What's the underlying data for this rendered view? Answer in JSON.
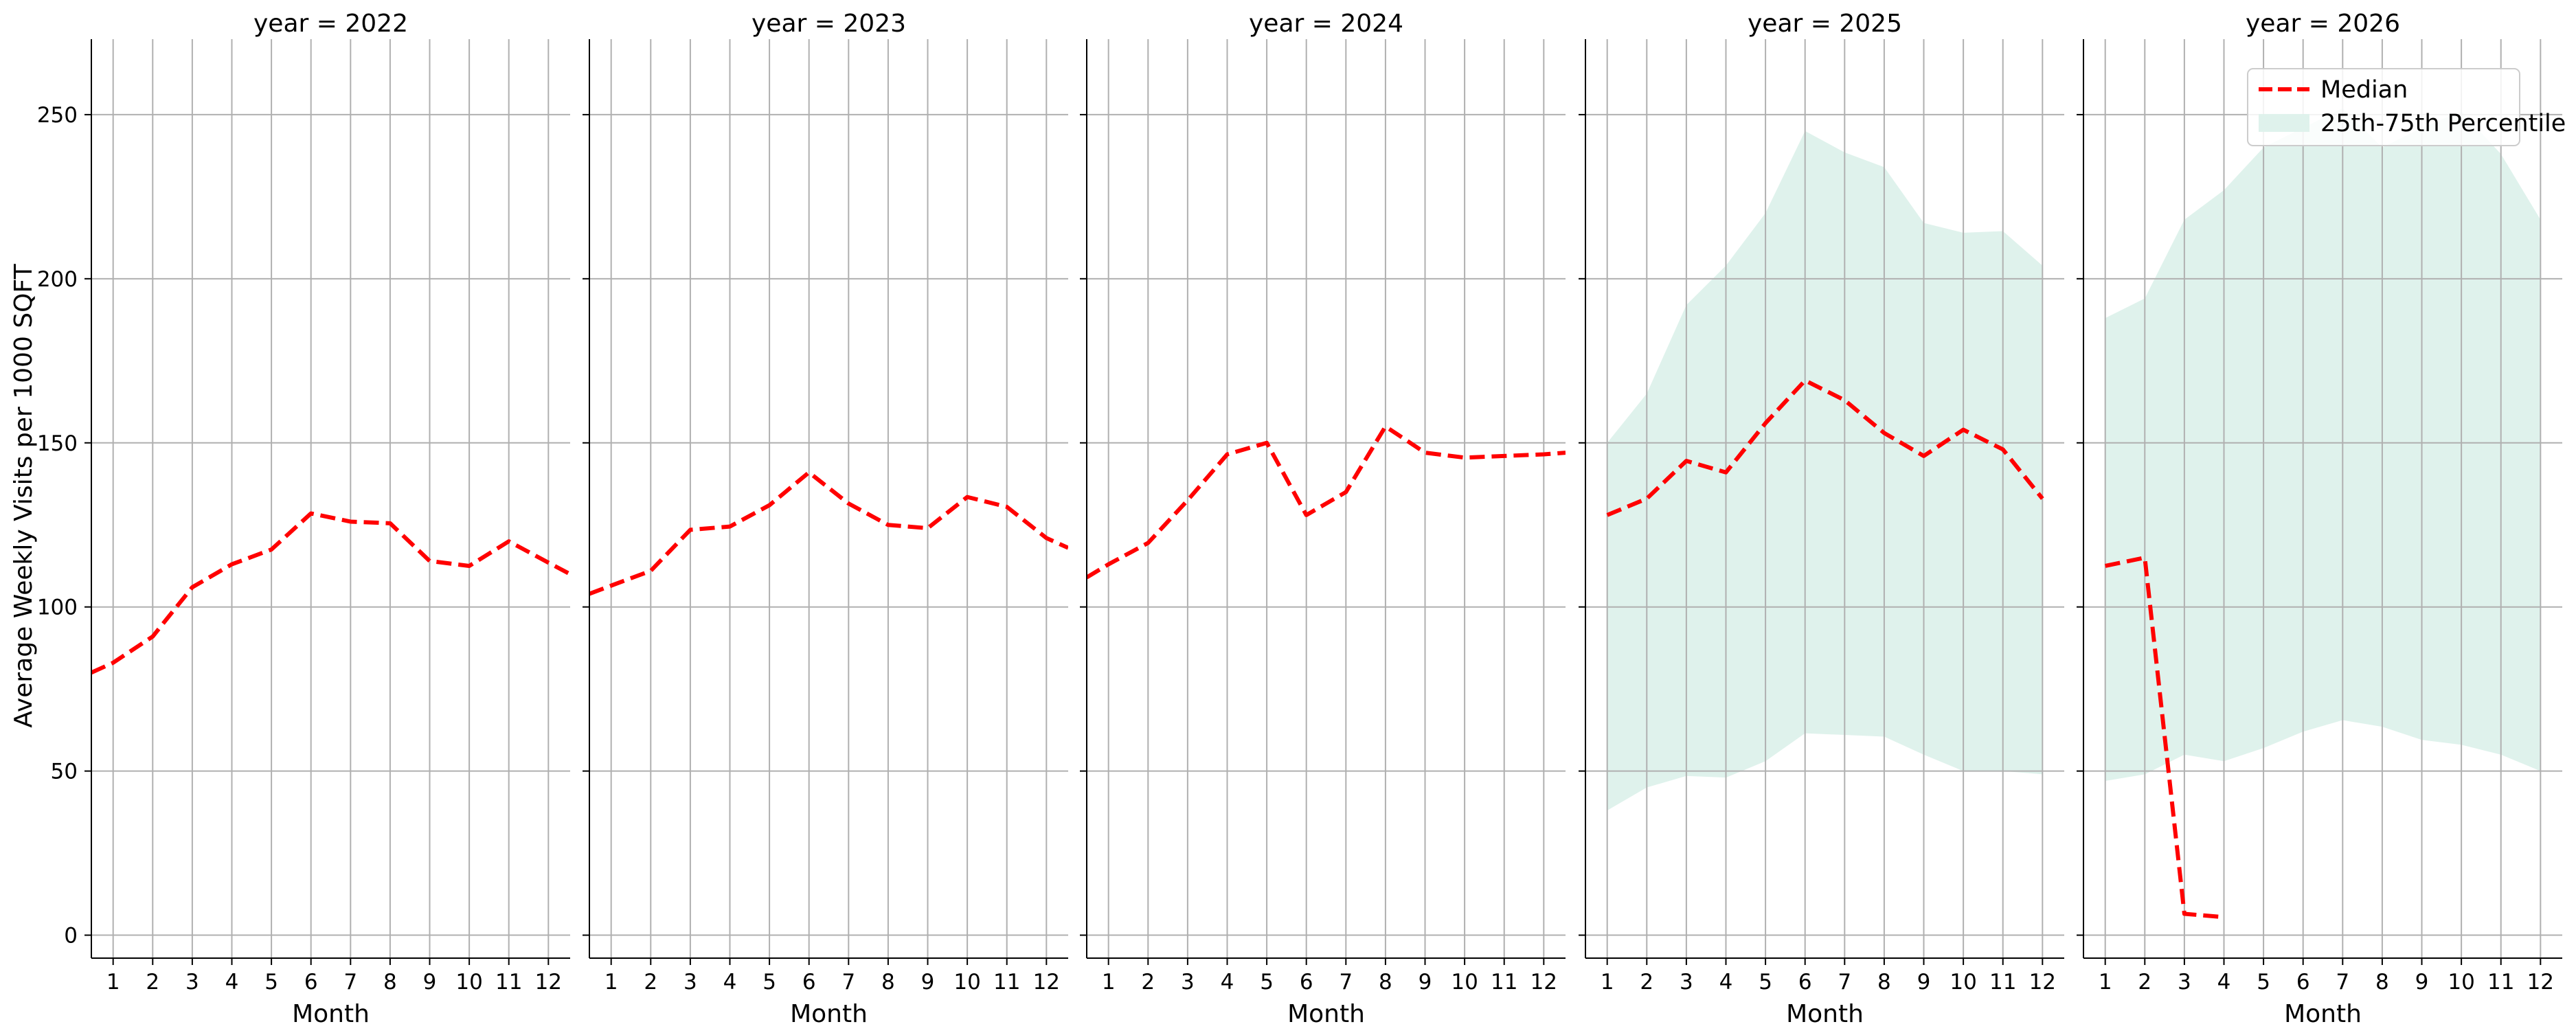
{
  "chart_data": {
    "type": "line",
    "ylabel": "Average Weekly Visits per 1000 SQFT",
    "xlabel": "Month",
    "ylim": [
      -7,
      273
    ],
    "xlim": [
      0.45,
      12.55
    ],
    "x_ticks": [
      1,
      2,
      3,
      4,
      5,
      6,
      7,
      8,
      9,
      10,
      11,
      12
    ],
    "y_ticks": [
      0,
      50,
      100,
      150,
      200,
      250
    ],
    "grid": true,
    "legend": {
      "placement": "top-right",
      "entries": [
        {
          "label": "Median",
          "style": "dashed-line",
          "color": "#ff0000"
        },
        {
          "label": "25th-75th Percentile",
          "style": "band",
          "color": "#dff2ec"
        }
      ]
    },
    "colors": {
      "median": "#ff0000",
      "band": "#dff2ec",
      "grid": "#b0b0b0"
    },
    "panels": [
      {
        "title": "year = 2022",
        "median": {
          "x": [
            0.45,
            1,
            2,
            3,
            4,
            5,
            6,
            7,
            8,
            9,
            10,
            11,
            12,
            12.55
          ],
          "y": [
            80,
            83,
            91,
            106,
            113,
            117.5,
            128.5,
            126,
            125.5,
            114,
            112.5,
            120,
            113.5,
            110
          ]
        },
        "band": null
      },
      {
        "title": "year = 2023",
        "median": {
          "x": [
            0.45,
            1,
            2,
            3,
            4,
            5,
            6,
            7,
            8,
            9,
            10,
            11,
            12,
            12.55
          ],
          "y": [
            104,
            106.5,
            111,
            123.5,
            124.5,
            131,
            141,
            131.5,
            125,
            124,
            133.5,
            130.5,
            121,
            118
          ]
        },
        "band": null
      },
      {
        "title": "year = 2024",
        "median": {
          "x": [
            0.45,
            1,
            2,
            3,
            4,
            5,
            6,
            7,
            8,
            9,
            10,
            11,
            12,
            12.55
          ],
          "y": [
            109,
            113,
            119.5,
            132.5,
            146.5,
            150,
            128,
            135,
            155,
            147,
            145.5,
            146,
            146.5,
            147
          ]
        },
        "band": null
      },
      {
        "title": "year = 2025",
        "median": {
          "x": [
            1,
            2,
            3,
            4,
            5,
            6,
            7,
            8,
            9,
            10,
            11,
            12
          ],
          "y": [
            128,
            133,
            144.5,
            141,
            156,
            169,
            163,
            153,
            146,
            154,
            148,
            133
          ]
        },
        "band": {
          "x": [
            1,
            2,
            3,
            4,
            5,
            6,
            7,
            8,
            9,
            10,
            11,
            12
          ],
          "lower": [
            38,
            45,
            48.5,
            48,
            53,
            61.5,
            61,
            60.5,
            55,
            50,
            50,
            49
          ],
          "upper": [
            150,
            165,
            192,
            204,
            220,
            245,
            238.5,
            234,
            217,
            214,
            214.5,
            204
          ]
        }
      },
      {
        "title": "year = 2026",
        "median": {
          "x": [
            1,
            2,
            3,
            4
          ],
          "y": [
            112.5,
            115,
            6.5,
            5.5
          ]
        },
        "band": {
          "x": [
            1,
            2,
            3,
            4,
            5,
            6,
            7,
            8,
            9,
            10,
            11,
            12
          ],
          "lower": [
            47,
            49,
            55,
            53,
            57,
            62,
            65.5,
            63.5,
            59.5,
            58,
            55,
            50
          ],
          "upper": [
            188,
            194,
            218,
            227,
            240,
            246,
            252,
            240,
            246,
            251,
            238,
            218
          ]
        }
      }
    ]
  }
}
